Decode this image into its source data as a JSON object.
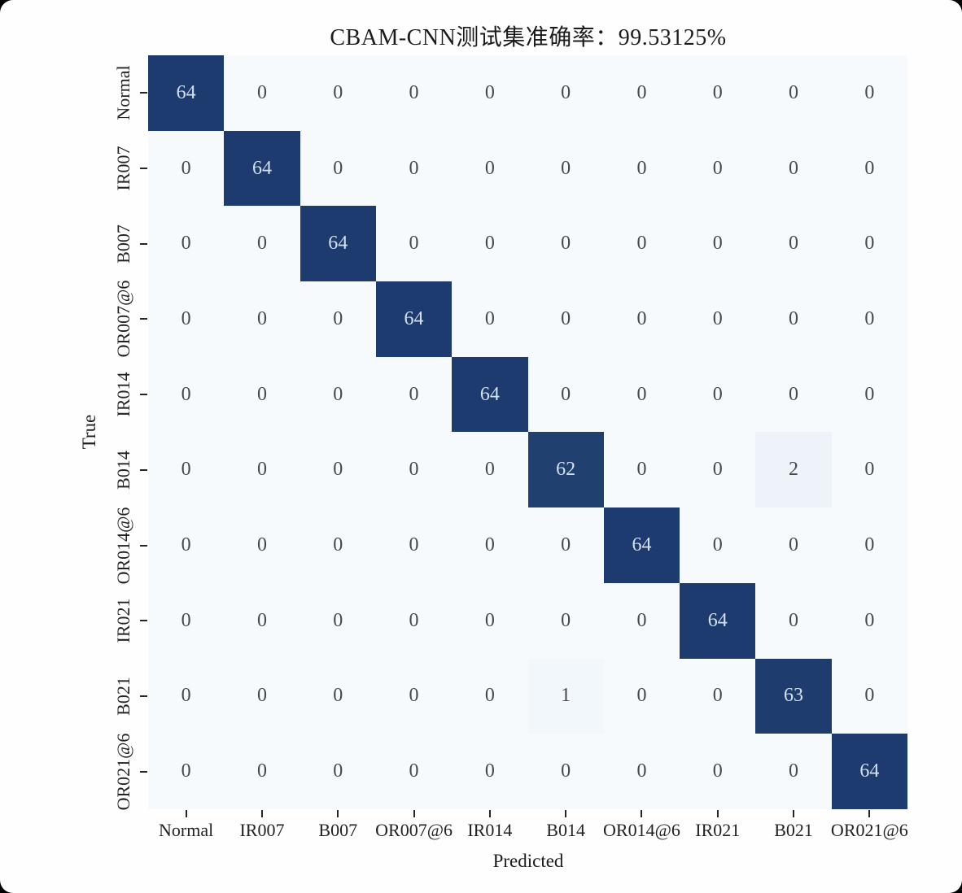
{
  "title": "CBAM-CNN测试集准确率：99.53125%",
  "axes": {
    "x_label": "Predicted",
    "y_label": "True"
  },
  "chart_data": {
    "type": "heatmap",
    "subtype": "confusion-matrix",
    "title": "CBAM-CNN测试集准确率：99.53125%",
    "xlabel": "Predicted",
    "ylabel": "True",
    "accuracy_percent": 99.53125,
    "categories": [
      "Normal",
      "IR007",
      "B007",
      "OR007@6",
      "IR014",
      "B014",
      "OR014@6",
      "IR021",
      "B021",
      "OR021@6"
    ],
    "x_tick_labels": [
      "Normal",
      "IR007",
      "B007",
      "OR007@6",
      "IR014",
      "B014",
      "OR014@6",
      "IR021",
      "B021",
      "OR021@6"
    ],
    "y_tick_labels": [
      "Normal",
      "IR007",
      "B007",
      "OR007@6",
      "IR014",
      "B014",
      "OR014@6",
      "IR021",
      "B021",
      "OR021@6"
    ],
    "matrix": [
      [
        64,
        0,
        0,
        0,
        0,
        0,
        0,
        0,
        0,
        0
      ],
      [
        0,
        64,
        0,
        0,
        0,
        0,
        0,
        0,
        0,
        0
      ],
      [
        0,
        0,
        64,
        0,
        0,
        0,
        0,
        0,
        0,
        0
      ],
      [
        0,
        0,
        0,
        64,
        0,
        0,
        0,
        0,
        0,
        0
      ],
      [
        0,
        0,
        0,
        0,
        64,
        0,
        0,
        0,
        0,
        0
      ],
      [
        0,
        0,
        0,
        0,
        0,
        62,
        0,
        0,
        2,
        0
      ],
      [
        0,
        0,
        0,
        0,
        0,
        0,
        64,
        0,
        0,
        0
      ],
      [
        0,
        0,
        0,
        0,
        0,
        0,
        0,
        64,
        0,
        0
      ],
      [
        0,
        0,
        0,
        0,
        0,
        1,
        0,
        0,
        63,
        0
      ],
      [
        0,
        0,
        0,
        0,
        0,
        0,
        0,
        0,
        0,
        64
      ]
    ],
    "colormap": "Blues",
    "value_range": [
      0,
      64
    ],
    "grid": false,
    "legend": false
  },
  "colors": {
    "figure_background": "#fefefe",
    "cell_scale": {
      "0": "#f7fafd",
      "1": "#f2f7fb",
      "2": "#edf3f9",
      "62": "#20406f",
      "63": "#1e3d6e",
      "64": "#1d3b6e"
    },
    "cell_text_dark_bg": "#d4e0ee",
    "cell_text_light_bg": "#45484c",
    "tick_color": "#262626",
    "dark_threshold": 32
  }
}
